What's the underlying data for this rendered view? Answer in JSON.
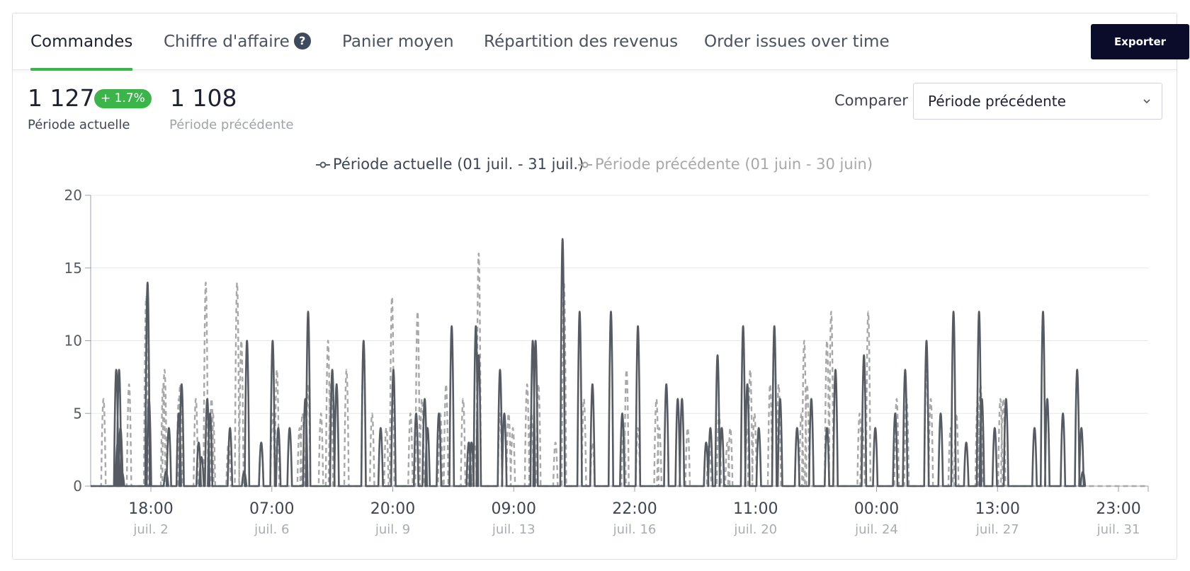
{
  "tabs": [
    {
      "label": "Commandes",
      "active": true
    },
    {
      "label": "Chiffre d'affaire",
      "help_icon": "?"
    },
    {
      "label": "Panier moyen"
    },
    {
      "label": "Répartition des revenus"
    },
    {
      "label": "Order issues over time"
    }
  ],
  "export_label": "Exporter",
  "kpi": {
    "current_value": "1 127",
    "change_badge": "+ 1.7%",
    "current_label": "Période actuelle",
    "previous_value": "1 108",
    "previous_label": "Période précédente"
  },
  "compare": {
    "label": "Comparer",
    "selected": "Période précédente"
  },
  "colors": {
    "accent": "#3bb54a",
    "current_series": "#555a63",
    "previous_series": "#a8a8a8",
    "export_bg": "#0b0c2a"
  },
  "chart_data": {
    "type": "line",
    "ylim": [
      0,
      20
    ],
    "y_ticks": [
      0,
      5,
      10,
      15,
      20
    ],
    "x_range_hours": [
      0,
      744
    ],
    "x_ticks": [
      {
        "time": "18:00",
        "date": "juil. 2"
      },
      {
        "time": "07:00",
        "date": "juil. 6"
      },
      {
        "time": "20:00",
        "date": "juil. 9"
      },
      {
        "time": "09:00",
        "date": "juil. 13"
      },
      {
        "time": "22:00",
        "date": "juil. 16"
      },
      {
        "time": "11:00",
        "date": "juil. 20"
      },
      {
        "time": "00:00",
        "date": "juil. 24"
      },
      {
        "time": "13:00",
        "date": "juil. 27"
      },
      {
        "time": "23:00",
        "date": "juil. 31"
      }
    ],
    "grid": true,
    "legend_position": "top-center",
    "series": [
      {
        "name": "Période actuelle (01 juil. - 31 juil.)",
        "style": "solid",
        "points": [
          [
            18,
            8
          ],
          [
            19,
            3
          ],
          [
            20,
            8
          ],
          [
            21,
            4
          ],
          [
            22,
            1
          ],
          [
            40,
            14
          ],
          [
            41,
            6
          ],
          [
            53,
            1
          ],
          [
            55,
            4
          ],
          [
            62,
            5
          ],
          [
            64,
            7
          ],
          [
            76,
            3
          ],
          [
            78,
            2
          ],
          [
            82,
            6
          ],
          [
            84,
            5
          ],
          [
            98,
            4
          ],
          [
            108,
            1
          ],
          [
            110,
            10
          ],
          [
            120,
            3
          ],
          [
            128,
            10
          ],
          [
            132,
            4
          ],
          [
            140,
            4
          ],
          [
            151,
            6
          ],
          [
            153,
            12
          ],
          [
            170,
            8
          ],
          [
            173,
            7
          ],
          [
            192,
            10
          ],
          [
            204,
            4
          ],
          [
            213,
            8
          ],
          [
            229,
            5
          ],
          [
            235,
            6
          ],
          [
            237,
            4
          ],
          [
            245,
            5
          ],
          [
            254,
            11
          ],
          [
            266,
            3
          ],
          [
            268,
            3
          ],
          [
            271,
            11
          ],
          [
            273,
            9
          ],
          [
            288,
            8
          ],
          [
            291,
            5
          ],
          [
            311,
            10
          ],
          [
            313,
            10
          ],
          [
            332,
            17
          ],
          [
            344,
            12
          ],
          [
            353,
            7
          ],
          [
            366,
            12
          ],
          [
            374,
            5
          ],
          [
            385,
            11
          ],
          [
            405,
            7
          ],
          [
            413,
            6
          ],
          [
            416,
            6
          ],
          [
            433,
            3
          ],
          [
            436,
            4
          ],
          [
            441,
            9
          ],
          [
            444,
            4
          ],
          [
            459,
            11
          ],
          [
            462,
            7
          ],
          [
            470,
            4
          ],
          [
            481,
            11
          ],
          [
            485,
            6
          ],
          [
            497,
            4
          ],
          [
            507,
            6
          ],
          [
            518,
            4
          ],
          [
            524,
            8
          ],
          [
            544,
            9
          ],
          [
            552,
            4
          ],
          [
            566,
            5
          ],
          [
            573,
            8
          ],
          [
            588,
            10
          ],
          [
            598,
            5
          ],
          [
            607,
            12
          ],
          [
            616,
            3
          ],
          [
            625,
            12
          ],
          [
            627,
            6
          ],
          [
            636,
            4
          ],
          [
            644,
            6
          ],
          [
            664,
            4
          ],
          [
            670,
            12
          ],
          [
            673,
            6
          ],
          [
            684,
            5
          ],
          [
            694,
            8
          ],
          [
            697,
            4
          ],
          [
            698,
            1
          ]
        ]
      },
      {
        "name": "Période précédente (01 juin - 30 juin)",
        "style": "dashed",
        "points": [
          [
            9,
            6
          ],
          [
            27,
            7
          ],
          [
            39,
            13
          ],
          [
            40,
            12
          ],
          [
            51,
            7
          ],
          [
            52,
            8
          ],
          [
            62,
            6
          ],
          [
            63,
            7
          ],
          [
            74,
            6
          ],
          [
            81,
            14
          ],
          [
            85,
            6
          ],
          [
            86,
            5
          ],
          [
            97,
            3
          ],
          [
            103,
            14
          ],
          [
            106,
            10
          ],
          [
            120,
            3
          ],
          [
            128,
            5
          ],
          [
            131,
            8
          ],
          [
            147,
            4
          ],
          [
            149,
            5
          ],
          [
            153,
            7
          ],
          [
            162,
            5
          ],
          [
            167,
            10
          ],
          [
            169,
            7
          ],
          [
            180,
            8
          ],
          [
            192,
            10
          ],
          [
            198,
            5
          ],
          [
            208,
            4
          ],
          [
            212,
            13
          ],
          [
            225,
            5
          ],
          [
            230,
            12
          ],
          [
            233,
            6
          ],
          [
            246,
            5
          ],
          [
            250,
            7
          ],
          [
            262,
            6
          ],
          [
            267,
            3
          ],
          [
            270,
            3
          ],
          [
            273,
            16
          ],
          [
            288,
            5
          ],
          [
            294,
            5
          ],
          [
            297,
            4
          ],
          [
            307,
            7
          ],
          [
            310,
            5
          ],
          [
            315,
            7
          ],
          [
            327,
            3
          ],
          [
            333,
            14
          ],
          [
            347,
            6
          ],
          [
            353,
            3
          ],
          [
            375,
            4
          ],
          [
            377,
            8
          ],
          [
            385,
            4
          ],
          [
            398,
            6
          ],
          [
            400,
            4
          ],
          [
            420,
            4
          ],
          [
            433,
            3
          ],
          [
            435,
            3
          ],
          [
            442,
            5
          ],
          [
            448,
            3
          ],
          [
            450,
            4
          ],
          [
            462,
            4
          ],
          [
            464,
            8
          ],
          [
            467,
            5
          ],
          [
            478,
            7
          ],
          [
            481,
            11
          ],
          [
            484,
            7
          ],
          [
            497,
            4
          ],
          [
            500,
            5
          ],
          [
            502,
            10
          ],
          [
            504,
            7
          ],
          [
            518,
            10
          ],
          [
            521,
            12
          ],
          [
            541,
            5
          ],
          [
            543,
            4
          ],
          [
            547,
            12
          ],
          [
            567,
            6
          ],
          [
            574,
            6
          ],
          [
            588,
            8
          ],
          [
            591,
            6
          ],
          [
            605,
            4
          ],
          [
            609,
            5
          ],
          [
            624,
            6
          ],
          [
            626,
            7
          ],
          [
            640,
            6
          ],
          [
            642,
            6
          ]
        ]
      }
    ]
  }
}
